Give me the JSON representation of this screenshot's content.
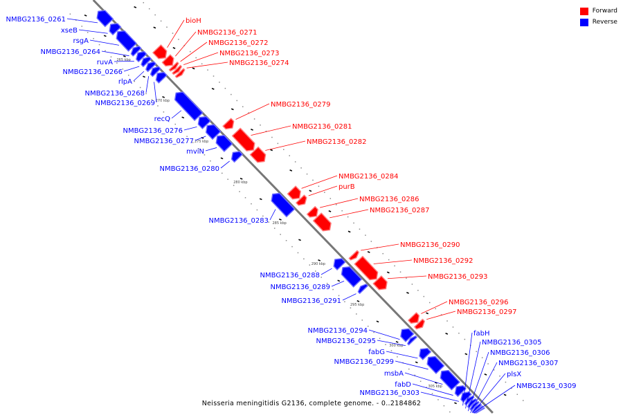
{
  "title": "Neisseria meningitidis G2136, complete genome. - 0..2184862",
  "legend": [
    {
      "label": "Forward",
      "color": "#ff0000"
    },
    {
      "label": "Reverse",
      "color": "#0000ff"
    }
  ],
  "ticks": [
    "265 kbp",
    "270 kbp",
    "275 kbp",
    "280 kbp",
    "285 kbp",
    "290 kbp",
    "295 kbp",
    "300 kbp",
    "305 kbp"
  ],
  "genes": [
    {
      "label": "NMBG2136_0261",
      "strand": "reverse"
    },
    {
      "label": "xseB",
      "strand": "reverse"
    },
    {
      "label": "rsgA",
      "strand": "reverse"
    },
    {
      "label": "NMBG2136_0264",
      "strand": "reverse"
    },
    {
      "label": "ruvA",
      "strand": "reverse"
    },
    {
      "label": "NMBG2136_0266",
      "strand": "reverse"
    },
    {
      "label": "rlpA",
      "strand": "reverse"
    },
    {
      "label": "NMBG2136_0268",
      "strand": "reverse"
    },
    {
      "label": "NMBG2136_0269",
      "strand": "reverse"
    },
    {
      "label": "recQ",
      "strand": "reverse"
    },
    {
      "label": "NMBG2136_0276",
      "strand": "reverse"
    },
    {
      "label": "NMBG2136_0277",
      "strand": "reverse"
    },
    {
      "label": "mviN",
      "strand": "reverse"
    },
    {
      "label": "NMBG2136_0280",
      "strand": "reverse"
    },
    {
      "label": "NMBG2136_0283",
      "strand": "reverse"
    },
    {
      "label": "NMBG2136_0288",
      "strand": "reverse"
    },
    {
      "label": "NMBG2136_0289",
      "strand": "reverse"
    },
    {
      "label": "NMBG2136_0291",
      "strand": "reverse"
    },
    {
      "label": "NMBG2136_0294",
      "strand": "reverse"
    },
    {
      "label": "NMBG2136_0295",
      "strand": "reverse"
    },
    {
      "label": "fabG",
      "strand": "reverse"
    },
    {
      "label": "NMBG2136_0299",
      "strand": "reverse"
    },
    {
      "label": "msbA",
      "strand": "reverse"
    },
    {
      "label": "fabD",
      "strand": "reverse"
    },
    {
      "label": "NMBG2136_0303",
      "strand": "reverse"
    },
    {
      "label": "fabH",
      "strand": "reverse"
    },
    {
      "label": "NMBG2136_0305",
      "strand": "reverse"
    },
    {
      "label": "NMBG2136_0306",
      "strand": "reverse"
    },
    {
      "label": "NMBG2136_0307",
      "strand": "reverse"
    },
    {
      "label": "plsX",
      "strand": "reverse"
    },
    {
      "label": "NMBG2136_0309",
      "strand": "reverse"
    },
    {
      "label": "bioH",
      "strand": "forward"
    },
    {
      "label": "NMBG2136_0271",
      "strand": "forward"
    },
    {
      "label": "NMBG2136_0272",
      "strand": "forward"
    },
    {
      "label": "NMBG2136_0273",
      "strand": "forward"
    },
    {
      "label": "NMBG2136_0274",
      "strand": "forward"
    },
    {
      "label": "NMBG2136_0279",
      "strand": "forward"
    },
    {
      "label": "NMBG2136_0281",
      "strand": "forward"
    },
    {
      "label": "NMBG2136_0282",
      "strand": "forward"
    },
    {
      "label": "NMBG2136_0284",
      "strand": "forward"
    },
    {
      "label": "purB",
      "strand": "forward"
    },
    {
      "label": "NMBG2136_0286",
      "strand": "forward"
    },
    {
      "label": "NMBG2136_0287",
      "strand": "forward"
    },
    {
      "label": "NMBG2136_0290",
      "strand": "forward"
    },
    {
      "label": "NMBG2136_0292",
      "strand": "forward"
    },
    {
      "label": "NMBG2136_0293",
      "strand": "forward"
    },
    {
      "label": "NMBG2136_0296",
      "strand": "forward"
    },
    {
      "label": "NMBG2136_0297",
      "strand": "forward"
    }
  ]
}
